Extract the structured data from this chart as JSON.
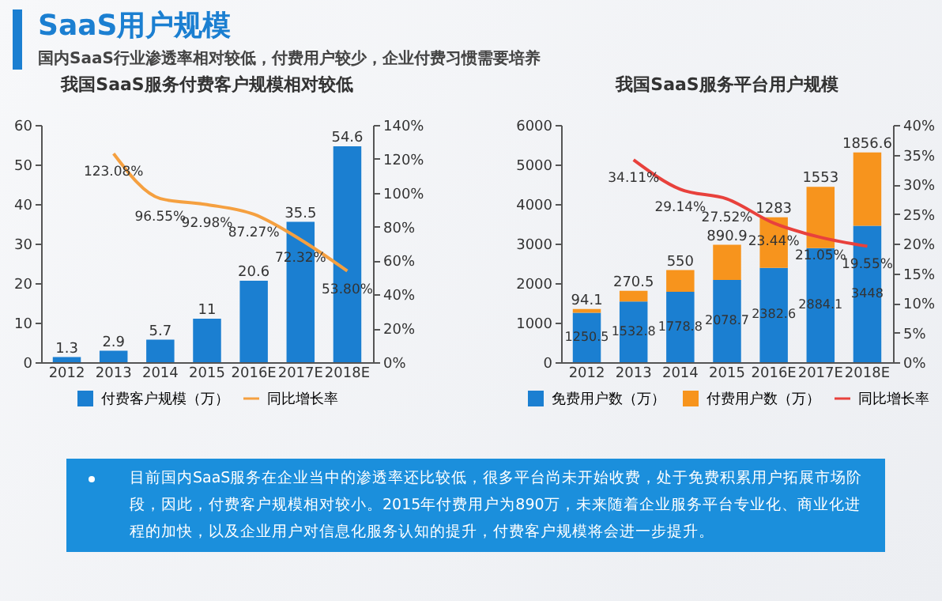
{
  "chart_data": [
    {
      "type": "other",
      "title": "SaaS用户规模",
      "subtitle": "国内SaaS行业渗透率相对较低，付费用户较少，企业付费习惯需要培养"
    },
    {
      "type": "bar",
      "title": "我国SaaS服务付费客户规模相对较低",
      "categories": [
        "2012",
        "2013",
        "2014",
        "2015",
        "2016E",
        "2017E",
        "2018E"
      ],
      "data_labels": true,
      "legend": "bottom",
      "ylim": [
        0,
        60
      ],
      "yticks": [
        0,
        10,
        20,
        30,
        40,
        50,
        60
      ],
      "y2lim": [
        0,
        140
      ],
      "y2ticks": [
        {
          "value": 0,
          "label": "0%"
        },
        {
          "value": 20,
          "label": "20%"
        },
        {
          "value": 40,
          "label": "40%"
        },
        {
          "value": 60,
          "label": "60%"
        },
        {
          "value": 80,
          "label": "80%"
        },
        {
          "value": 100,
          "label": "100%"
        },
        {
          "value": 120,
          "label": "120%"
        },
        {
          "value": 140,
          "label": "140%"
        }
      ],
      "series": [
        {
          "name": "付费客户规模（万）",
          "color": "#1b7fd1",
          "values": [
            1.3,
            2.9,
            5.7,
            11,
            20.6,
            35.5,
            54.6
          ]
        },
        {
          "name": "同比增长率",
          "type": "line",
          "axis": "y2",
          "color": "#f5a040",
          "values": [
            null,
            123.08,
            96.55,
            92.98,
            87.27,
            72.32,
            53.8
          ],
          "value_labels": [
            null,
            "123.08%",
            "96.55%",
            "92.98%",
            "87.27%",
            "72.32%",
            "53.80%"
          ]
        }
      ]
    },
    {
      "type": "bar",
      "title": "我国SaaS服务平台用户规模",
      "categories": [
        "2012",
        "2013",
        "2014",
        "2015",
        "2016E",
        "2017E",
        "2018E"
      ],
      "stacked": true,
      "data_labels": true,
      "legend": "bottom",
      "ylim": [
        0,
        6000
      ],
      "yticks": [
        0,
        1000,
        2000,
        3000,
        4000,
        5000,
        6000
      ],
      "y2lim": [
        0,
        40
      ],
      "y2ticks": [
        {
          "value": 0,
          "label": "0%"
        },
        {
          "value": 5,
          "label": "5%"
        },
        {
          "value": 10,
          "label": "10%"
        },
        {
          "value": 15,
          "label": "15%"
        },
        {
          "value": 20,
          "label": "20%"
        },
        {
          "value": 25,
          "label": "25%"
        },
        {
          "value": 30,
          "label": "30%"
        },
        {
          "value": 35,
          "label": "35%"
        },
        {
          "value": 40,
          "label": "40%"
        }
      ],
      "series": [
        {
          "name": "免费用户数（万）",
          "color": "#1b7fd1",
          "values": [
            1250.5,
            1532.8,
            1778.8,
            2078.7,
            2382.6,
            2884.1,
            3448
          ]
        },
        {
          "name": "付费用户数（万）",
          "color": "#f7941d",
          "values": [
            94.1,
            270.5,
            550,
            890.9,
            1283,
            1553,
            1856.6
          ]
        },
        {
          "name": "同比增长率",
          "type": "line",
          "axis": "y2",
          "color": "#e8413c",
          "values": [
            null,
            34.11,
            29.14,
            27.52,
            23.44,
            21.05,
            19.55
          ],
          "value_labels": [
            null,
            "34.11%",
            "29.14%",
            "27.52%",
            "23.44%",
            "21.05%",
            "19.55%"
          ]
        }
      ]
    },
    {
      "type": "other",
      "annotations": [
        "目前国内SaaS服务在企业当中的渗透率还比较低，很多平台尚未开始收费，处于免费积累用户拓展市场阶段，因此，付费客户规模相对较小。2015年付费用户为890万，未来随着企业服务平台专业化、商业化进程的加快，以及企业用户对信息化服务认知的提升，付费客户规模将会进一步提升。"
      ]
    }
  ]
}
